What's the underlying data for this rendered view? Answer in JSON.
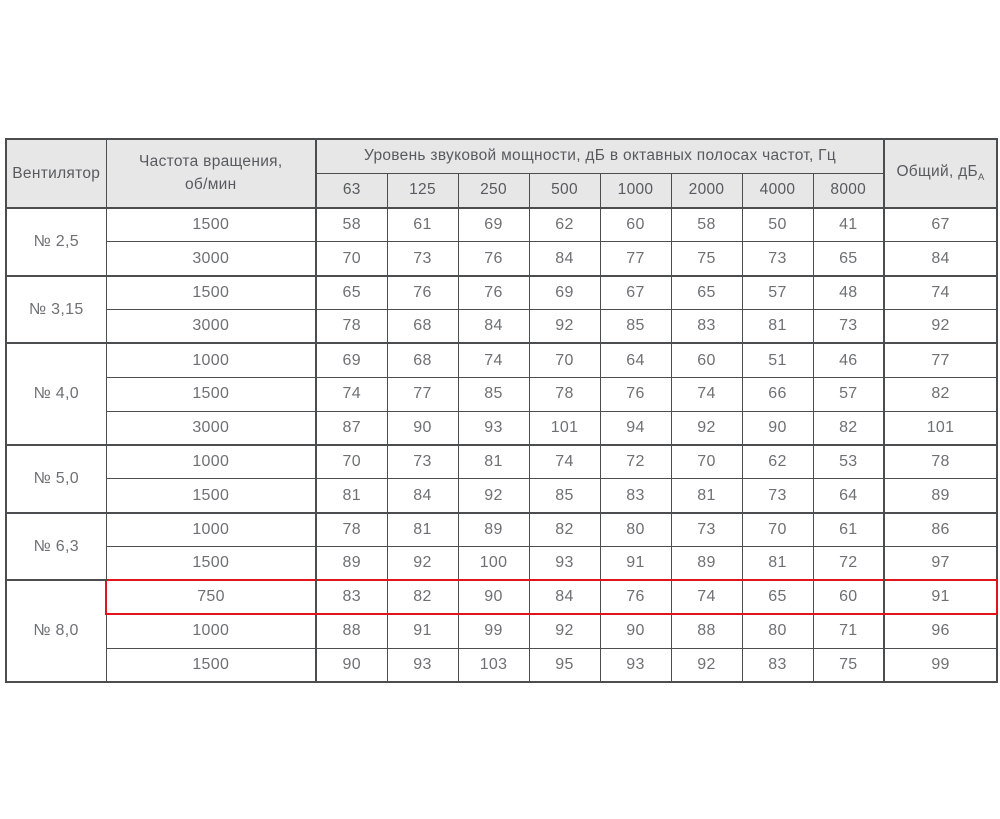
{
  "table": {
    "header": {
      "fan": "Вентилятор",
      "speed_line1": "Частота вращения,",
      "speed_line2": "об/мин",
      "octave_title": "Уровень звуковой мощности, дБ в октавных полосах частот, Гц",
      "frequencies": [
        "63",
        "125",
        "250",
        "500",
        "1000",
        "2000",
        "4000",
        "8000"
      ],
      "total_label": "Общий, дБ",
      "total_sub": "А"
    },
    "groups": [
      {
        "fan": "№ 2,5",
        "rows": [
          {
            "speed": "1500",
            "values": [
              58,
              61,
              69,
              62,
              60,
              58,
              50,
              41
            ],
            "total": 67
          },
          {
            "speed": "3000",
            "values": [
              70,
              73,
              76,
              84,
              77,
              75,
              73,
              65
            ],
            "total": 84
          }
        ]
      },
      {
        "fan": "№ 3,15",
        "rows": [
          {
            "speed": "1500",
            "values": [
              65,
              76,
              76,
              69,
              67,
              65,
              57,
              48
            ],
            "total": 74
          },
          {
            "speed": "3000",
            "values": [
              78,
              68,
              84,
              92,
              85,
              83,
              81,
              73
            ],
            "total": 92
          }
        ]
      },
      {
        "fan": "№ 4,0",
        "rows": [
          {
            "speed": "1000",
            "values": [
              69,
              68,
              74,
              70,
              64,
              60,
              51,
              46
            ],
            "total": 77
          },
          {
            "speed": "1500",
            "values": [
              74,
              77,
              85,
              78,
              76,
              74,
              66,
              57
            ],
            "total": 82
          },
          {
            "speed": "3000",
            "values": [
              87,
              90,
              93,
              101,
              94,
              92,
              90,
              82
            ],
            "total": 101
          }
        ]
      },
      {
        "fan": "№ 5,0",
        "rows": [
          {
            "speed": "1000",
            "values": [
              70,
              73,
              81,
              74,
              72,
              70,
              62,
              53
            ],
            "total": 78
          },
          {
            "speed": "1500",
            "values": [
              81,
              84,
              92,
              85,
              83,
              81,
              73,
              64
            ],
            "total": 89
          }
        ]
      },
      {
        "fan": "№ 6,3",
        "rows": [
          {
            "speed": "1000",
            "values": [
              78,
              81,
              89,
              82,
              80,
              73,
              70,
              61
            ],
            "total": 86
          },
          {
            "speed": "1500",
            "values": [
              89,
              92,
              100,
              93,
              91,
              89,
              81,
              72
            ],
            "total": 97
          }
        ]
      },
      {
        "fan": "№ 8,0",
        "rows": [
          {
            "speed": "750",
            "values": [
              83,
              82,
              90,
              84,
              76,
              74,
              65,
              60
            ],
            "total": 91,
            "highlighted": true
          },
          {
            "speed": "1000",
            "values": [
              88,
              91,
              99,
              92,
              90,
              88,
              80,
              71
            ],
            "total": 96
          },
          {
            "speed": "1500",
            "values": [
              90,
              93,
              103,
              95,
              93,
              92,
              83,
              75
            ],
            "total": 99
          }
        ]
      }
    ],
    "colors": {
      "highlight": "#e2131b",
      "border": "#4c4d4f",
      "header_bg": "#e7e7e8",
      "header_text": "#595a5d",
      "data_text": "#6f7073"
    }
  }
}
